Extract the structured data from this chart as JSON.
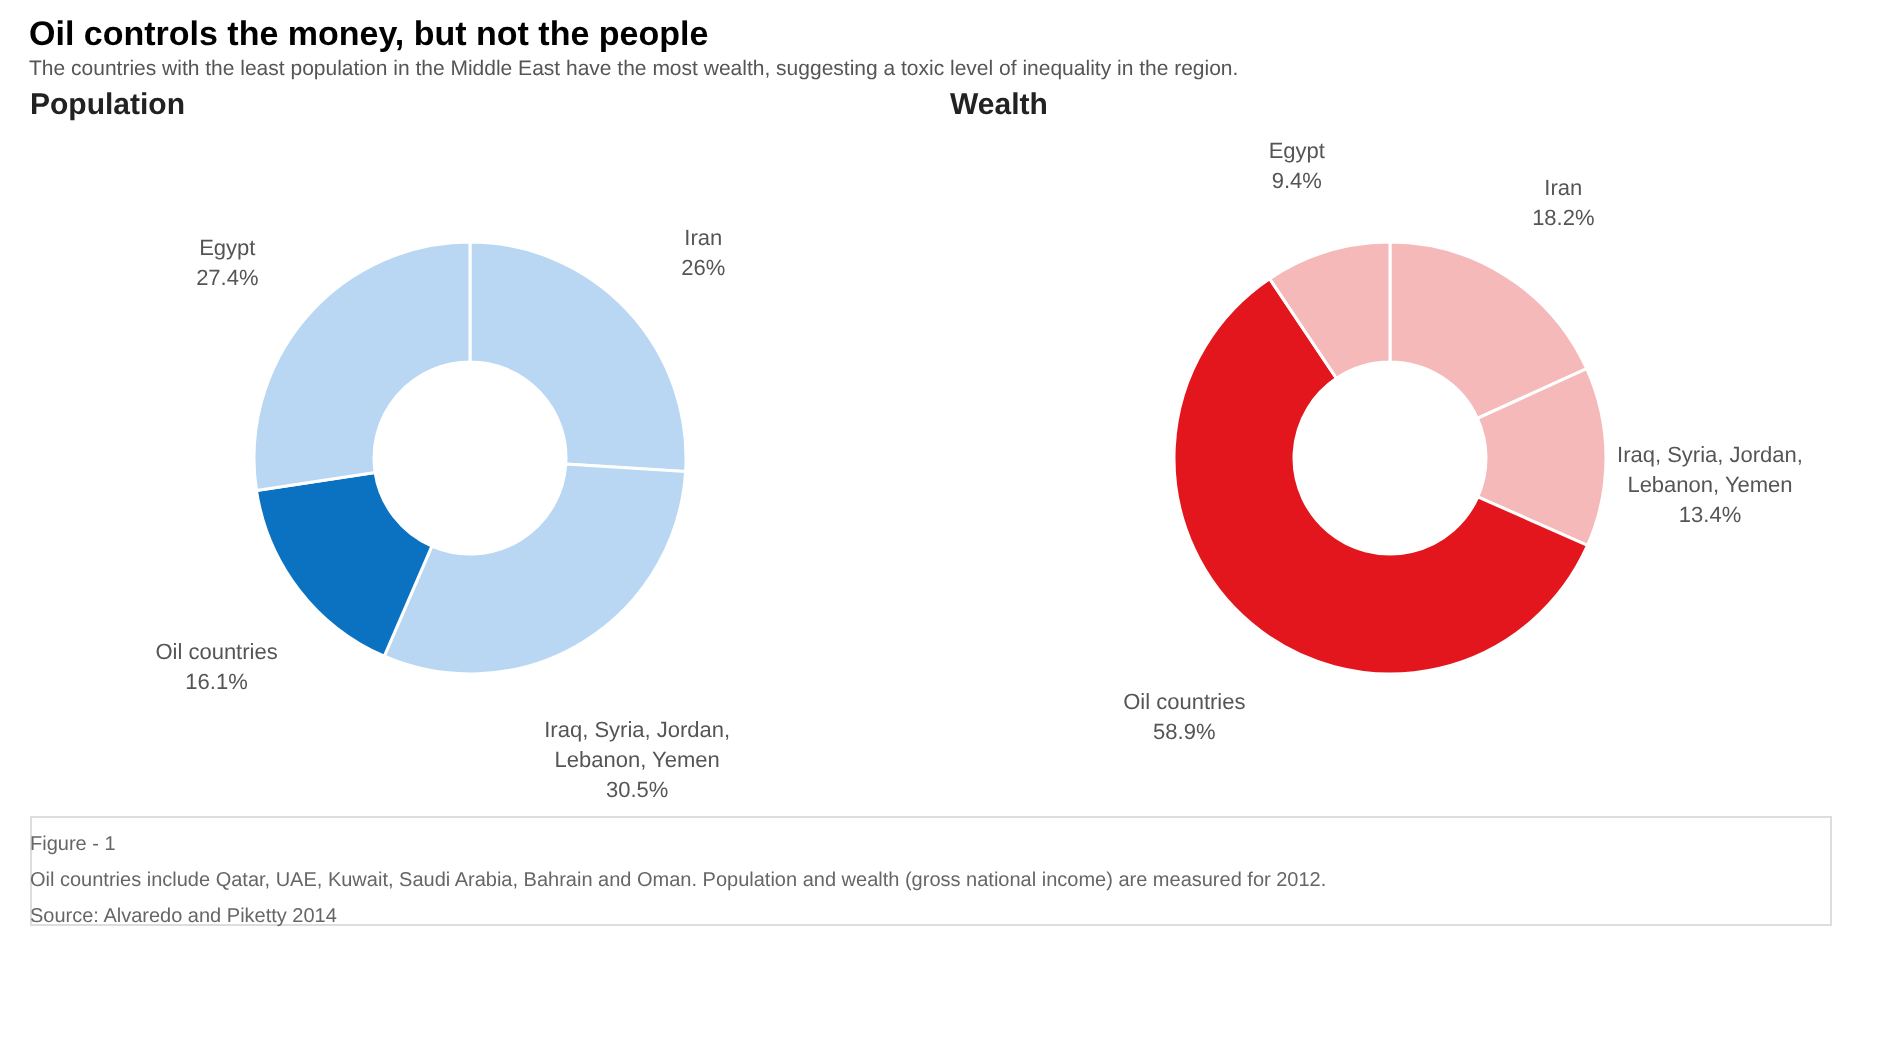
{
  "chart_data": [
    {
      "type": "donut",
      "title": "Oil controls the money, but not the people",
      "subtitle": "The countries with the least population in the Middle East have the most wealth, suggesting a toxic level of inequality in the region.",
      "annotations": [
        "Population",
        "Figure - 1"
      ],
      "categories": [
        "Iran",
        "Iraq, Syria, Jordan, Lebanon, Yemen",
        "Oil countries",
        "Egypt"
      ],
      "values": [
        26,
        30.5,
        16.1,
        27.4
      ],
      "value_labels": [
        "26%",
        "30.5%",
        "16.1%",
        "27.4%"
      ],
      "colors": [
        "#b9d7f3",
        "#b9d7f3",
        "#0b72c1",
        "#b9d7f3"
      ],
      "legend": false
    },
    {
      "type": "donut",
      "annotations": [
        "Wealth",
        "Oil countries include Qatar, UAE, Kuwait, Saudi Arabia, Bahrain and Oman. Population and  wealth (gross national income) are measured for 2012.",
        "Source: Alvaredo and Piketty 2014"
      ],
      "categories": [
        "Iran",
        "Iraq, Syria, Jordan, Lebanon, Yemen",
        "Oil countries",
        "Egypt"
      ],
      "values": [
        18.2,
        13.4,
        58.9,
        9.4
      ],
      "value_labels": [
        "18.2%",
        "13.4%",
        "58.9%",
        "9.4%"
      ],
      "colors": [
        "#f6b9b9",
        "#f6b9b9",
        "#e4161d",
        "#f6b9b9"
      ],
      "legend": false
    }
  ]
}
